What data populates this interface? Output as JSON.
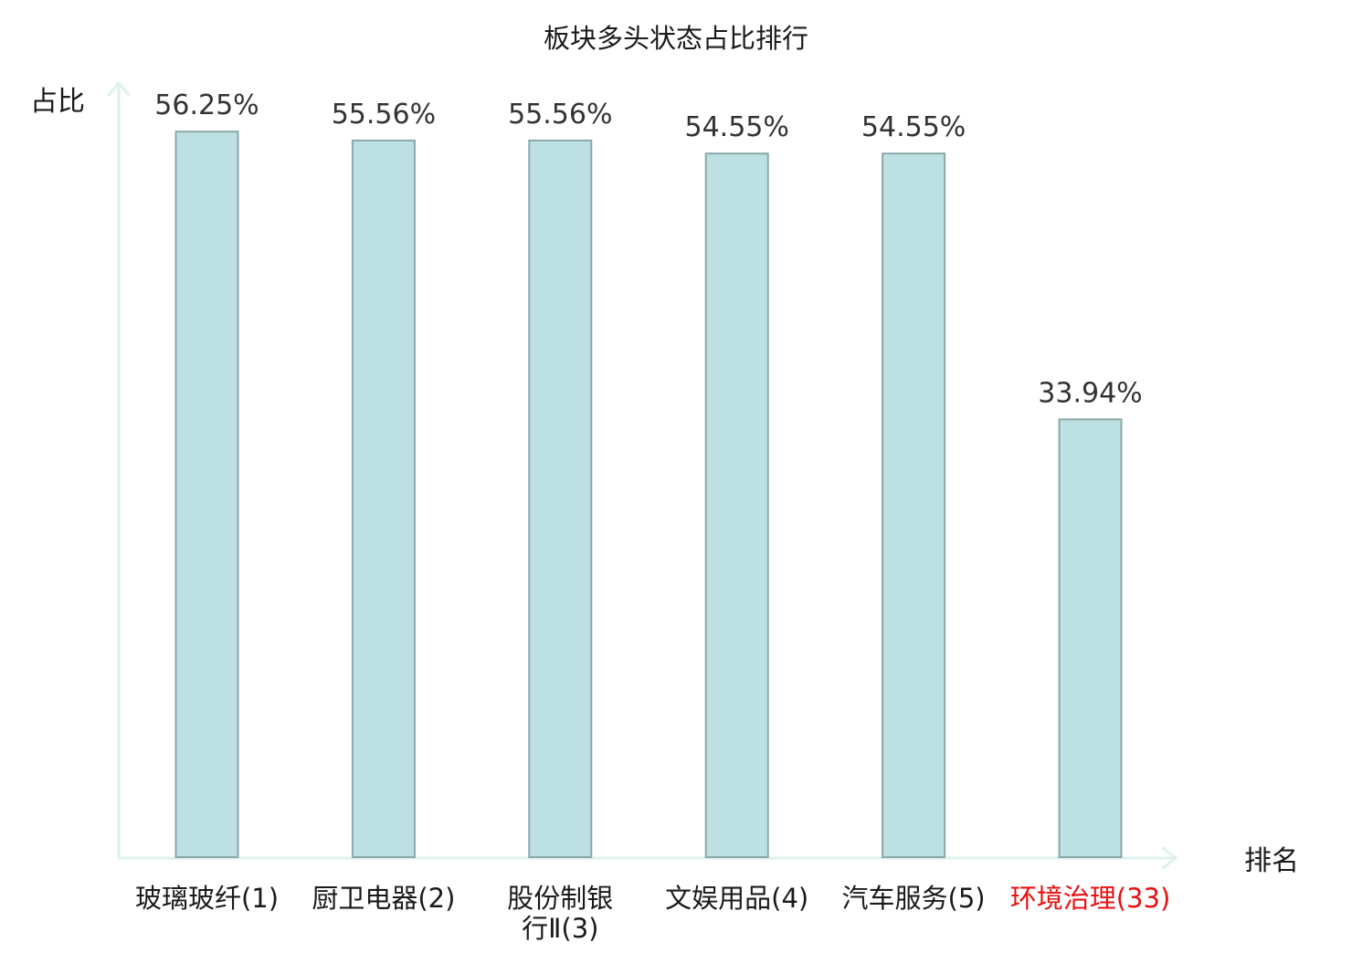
{
  "chart_data": {
    "type": "bar",
    "title": "板块多头状态占比排行",
    "ylabel": "占比",
    "xlabel": "排名",
    "ylim": [
      0,
      60
    ],
    "grid": false,
    "legend": "none",
    "categories": [
      "玻璃玻纤(1)",
      "厨卫电器(2)",
      "股份制银行Ⅱ(3)",
      "文娱用品(4)",
      "汽车服务(5)",
      "环境治理(33)"
    ],
    "category_lines": [
      [
        "玻璃玻纤(1)"
      ],
      [
        "厨卫电器(2)"
      ],
      [
        "股份制银",
        "行Ⅱ(3)"
      ],
      [
        "文娱用品(4)"
      ],
      [
        "汽车服务(5)"
      ],
      [
        "环境治理(33)"
      ]
    ],
    "values": [
      56.25,
      55.56,
      55.56,
      54.55,
      54.55,
      33.94
    ],
    "value_labels": [
      "56.25%",
      "55.56%",
      "55.56%",
      "54.55%",
      "54.55%",
      "33.94%"
    ],
    "highlight_index": 5
  },
  "colors": {
    "bar_fill": "#bde1e3",
    "bar_stroke": "#8aa8a9",
    "axis": "#dff1ef",
    "label_normal": "#1a1a1a",
    "label_highlight": "#e81010"
  }
}
